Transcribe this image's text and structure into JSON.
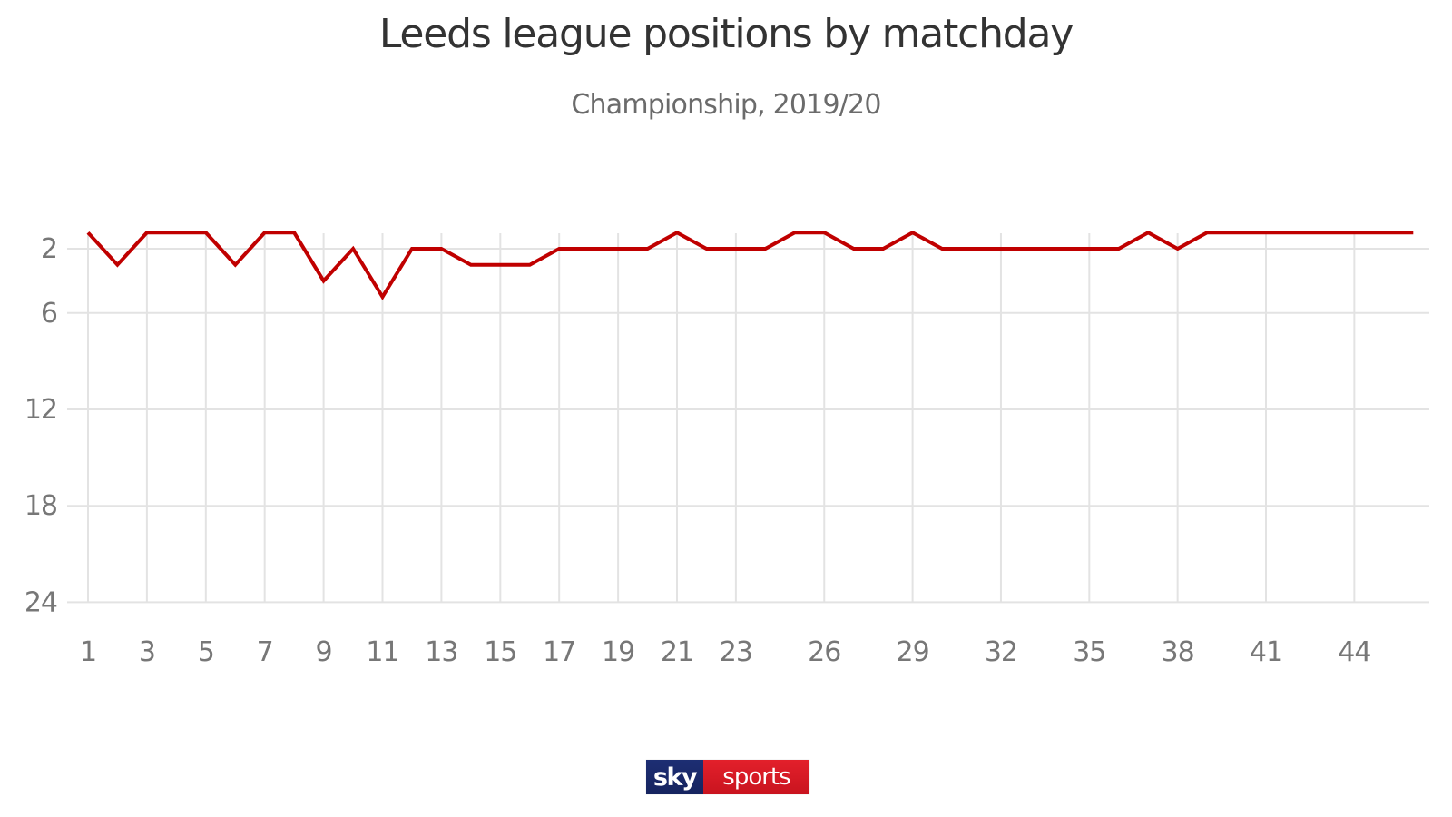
{
  "header": {
    "title": "Leeds league positions by matchday",
    "subtitle": "Championship, 2019/20"
  },
  "brand": {
    "logo_left": "sky",
    "logo_right": "sports",
    "logo_colors": {
      "left": "#1d2e73",
      "right": "#e3202b"
    }
  },
  "colors": {
    "line": "#c00000",
    "grid": "#e3e3e3",
    "tick_text": "#777777"
  },
  "chart_data": {
    "type": "line",
    "title": "Leeds league positions by matchday",
    "subtitle": "Championship, 2019/20",
    "xlabel": "",
    "ylabel": "",
    "x": [
      1,
      2,
      3,
      4,
      5,
      6,
      7,
      8,
      9,
      10,
      11,
      12,
      13,
      14,
      15,
      16,
      17,
      18,
      19,
      20,
      21,
      22,
      23,
      24,
      25,
      26,
      27,
      28,
      29,
      30,
      31,
      32,
      33,
      34,
      35,
      36,
      37,
      38,
      39,
      40,
      41,
      42,
      43,
      44,
      45,
      46
    ],
    "series": [
      {
        "name": "Leeds",
        "values": [
          1,
          3,
          1,
          1,
          1,
          3,
          1,
          1,
          4,
          2,
          5,
          2,
          2,
          3,
          3,
          3,
          2,
          2,
          2,
          2,
          1,
          2,
          2,
          2,
          1,
          1,
          2,
          2,
          1,
          2,
          2,
          2,
          2,
          2,
          2,
          2,
          1,
          2,
          1,
          1,
          1,
          1,
          1,
          1,
          1,
          1
        ]
      }
    ],
    "x_ticks": [
      1,
      3,
      5,
      7,
      9,
      11,
      13,
      15,
      17,
      19,
      21,
      23,
      26,
      29,
      32,
      35,
      38,
      41,
      44
    ],
    "y_ticks": [
      2,
      6,
      12,
      18,
      24
    ],
    "ylim": [
      1,
      24
    ],
    "y_inverted": true,
    "grid": true,
    "legend": "none"
  }
}
